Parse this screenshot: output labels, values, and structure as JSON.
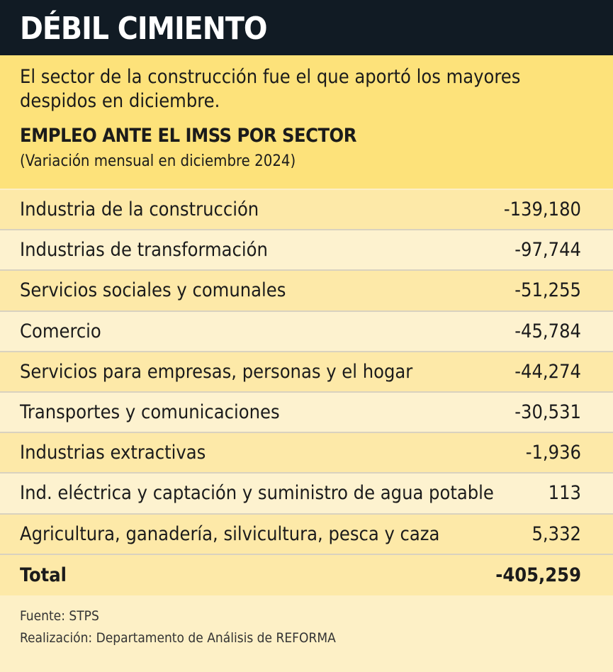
{
  "header": {
    "title": "DÉBIL CIMIENTO"
  },
  "intro": {
    "text": "El sector de la construcción fue el que aportó los mayores despidos en diciembre."
  },
  "table": {
    "title": "EMPLEO ANTE EL IMSS POR SECTOR",
    "subtitle": "(Variación mensual en diciembre 2024)",
    "rows": [
      [
        "Industria de la construcción",
        "-139,180"
      ],
      [
        "Industrias de transformación",
        "-97,744"
      ],
      [
        "Servicios sociales y comunales",
        "-51,255"
      ],
      [
        "Comercio",
        "-45,784"
      ],
      [
        "Servicios para empresas, personas y el hogar",
        "-44,274"
      ],
      [
        "Transportes y comunicaciones",
        "-30,531"
      ],
      [
        "Industrias extractivas",
        "-1,936"
      ],
      [
        "Ind. eléctrica y captación y suministro de agua potable",
        "113"
      ],
      [
        "Agricultura, ganadería, silvicultura, pesca y caza",
        "5,332"
      ]
    ],
    "total": [
      "Total",
      "-405,259"
    ]
  },
  "footer": {
    "source": "Fuente: STPS",
    "credit": "Realización: Departamento de Análisis de REFORMA"
  }
}
